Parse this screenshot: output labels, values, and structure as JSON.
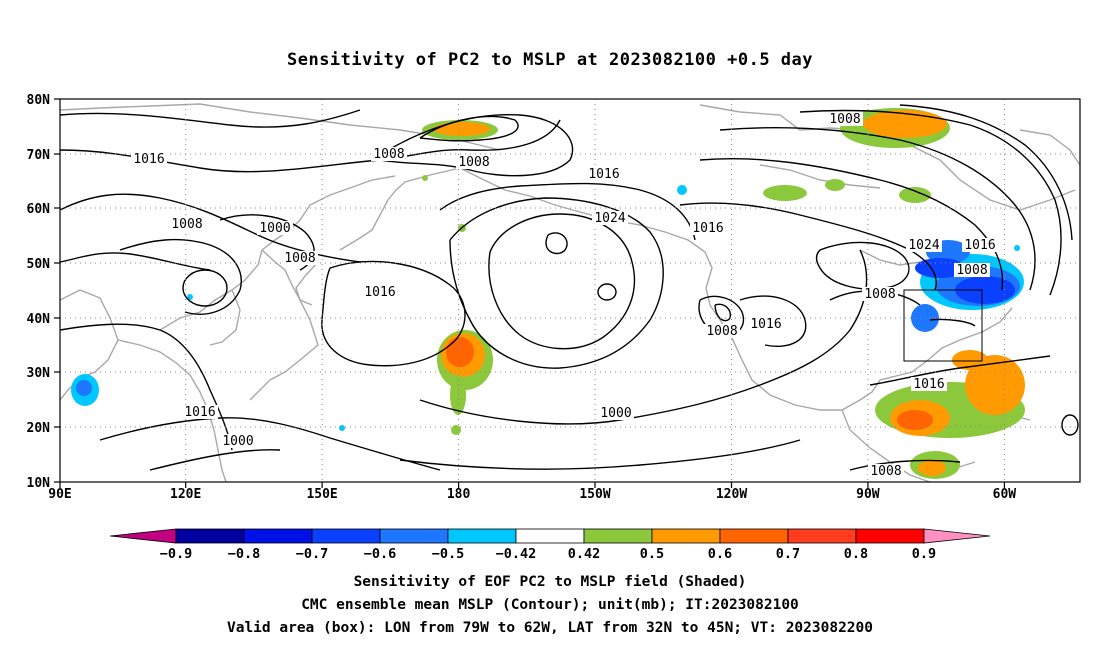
{
  "title": "Sensitivity of PC2 to MSLP at 2023082100 +0.5 day",
  "map": {
    "lon_range": [
      "90E",
      "325E"
    ],
    "lat_range": [
      10,
      80
    ],
    "x_ticks": [
      "90E",
      "120E",
      "150E",
      "180",
      "150W",
      "120W",
      "90W",
      "60W"
    ],
    "y_ticks": [
      "80N",
      "70N",
      "60N",
      "50N",
      "40N",
      "30N",
      "20N",
      "10N"
    ],
    "grid": "dotted",
    "valid_box": {
      "lon_from": "79W",
      "lon_to": "62W",
      "lat_from": "32N",
      "lat_to": "45N"
    },
    "contour_labels": [
      "1016",
      "1008",
      "1008",
      "1008",
      "1000",
      "1008",
      "1016",
      "1016",
      "1024",
      "1016",
      "1008",
      "1016",
      "1000",
      "1016",
      "1000",
      "1008",
      "1024",
      "1016",
      "1008",
      "1008",
      "1016",
      "1008"
    ]
  },
  "colorbar": {
    "labels": [
      "-0.9",
      "-0.8",
      "-0.7",
      "-0.6",
      "-0.5",
      "-0.42",
      "0.42",
      "0.5",
      "0.6",
      "0.7",
      "0.8",
      "0.9"
    ],
    "colors": [
      "#c00080",
      "#0000a0",
      "#0010e8",
      "#0a40ff",
      "#1e78ff",
      "#00c8ff",
      "#ffffff",
      "#8cc83c",
      "#ff9a00",
      "#ff6400",
      "#ff3c1e",
      "#ff0000",
      "#ff90c0"
    ]
  },
  "footer": {
    "line1": "Sensitivity of EOF PC2 to MSLP field (Shaded)",
    "line2": "CMC ensemble mean MSLP (Contour); unit(mb); IT:2023082100",
    "line3": "Valid area (box): LON from 79W to 62W, LAT from 32N to 45N; VT: 2023082200"
  }
}
